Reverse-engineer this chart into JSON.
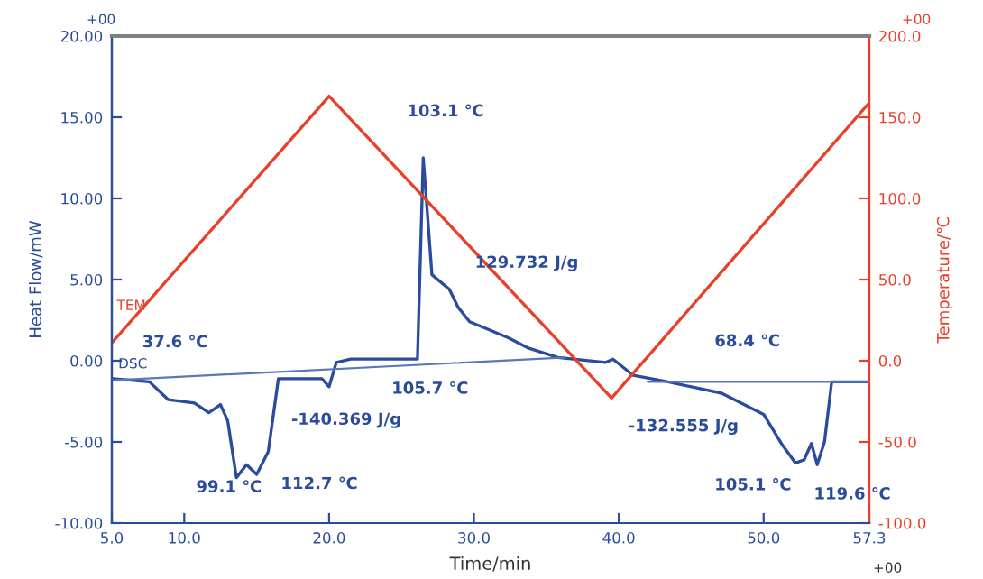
{
  "chart_data": {
    "type": "line",
    "xlabel": "Time/min",
    "ylabel": "Heat Flow/mW",
    "y2label": "Temperature/℃",
    "xlim": [
      5.0,
      57.3
    ],
    "xticks": [
      {
        "value": 5.0,
        "label": "5.0"
      },
      {
        "value": 10.0,
        "label": "10.0"
      },
      {
        "value": 20.0,
        "label": "20.0"
      },
      {
        "value": 30.0,
        "label": "30.0"
      },
      {
        "value": 40.0,
        "label": "40.0"
      },
      {
        "value": 50.0,
        "label": "50.0"
      },
      {
        "value": 57.3,
        "label": "57.3"
      }
    ],
    "ylim": [
      -10,
      20
    ],
    "yticks": [
      {
        "value": -10,
        "label": "-10.00"
      },
      {
        "value": -5,
        "label": "-5.00"
      },
      {
        "value": 0,
        "label": "0.00"
      },
      {
        "value": 5,
        "label": "5.00"
      },
      {
        "value": 10,
        "label": "10.00"
      },
      {
        "value": 15,
        "label": "15.00"
      },
      {
        "value": 20,
        "label": "20.00"
      }
    ],
    "y2lim": [
      -100,
      200
    ],
    "y2ticks": [
      {
        "value": -100,
        "label": "-100.0"
      },
      {
        "value": -50,
        "label": "-50.0"
      },
      {
        "value": 0,
        "label": "0.0"
      },
      {
        "value": 50,
        "label": "50.0"
      },
      {
        "value": 100,
        "label": "100.0"
      },
      {
        "value": 150,
        "label": "150.0"
      },
      {
        "value": 200,
        "label": "200.0"
      }
    ],
    "grid": false,
    "legend": "left",
    "marker": "none",
    "line_style": "solid",
    "series": [
      {
        "name": "TEM",
        "color": "#e8402a",
        "axis": "y2",
        "x": [
          5.0,
          20.0,
          39.5,
          57.3
        ],
        "values": [
          11,
          163,
          -23,
          159
        ]
      },
      {
        "name": "DSC",
        "color": "#2b4b9b",
        "x": [
          5.1,
          7.6,
          8.9,
          10.7,
          11.7,
          12.5,
          13.0,
          13.6,
          14.3,
          15.0,
          15.8,
          16.5,
          19.5,
          20.0,
          20.5,
          21.5,
          26.1,
          26.5,
          27.1,
          28.3,
          28.9,
          29.7,
          30.8,
          32.4,
          33.7,
          35.8,
          39.1,
          39.6,
          41.0,
          43.4,
          47.1,
          50.0,
          51.3,
          52.2,
          52.8,
          53.3,
          53.7,
          54.2,
          54.7,
          56.3,
          57.3
        ],
        "values": [
          -1.1,
          -1.3,
          -2.4,
          -2.6,
          -3.2,
          -2.7,
          -3.7,
          -7.2,
          -6.4,
          -7.0,
          -5.6,
          -1.1,
          -1.1,
          -1.6,
          -0.1,
          0.1,
          0.1,
          12.5,
          5.3,
          4.4,
          3.3,
          2.4,
          2.0,
          1.4,
          0.8,
          0.2,
          -0.1,
          0.1,
          -0.9,
          -1.3,
          -2.0,
          -3.3,
          -5.2,
          -6.3,
          -6.1,
          -5.1,
          -6.4,
          -5.0,
          -1.3,
          -1.3,
          -1.3
        ]
      },
      {
        "color": "#5a78b8",
        "x": [
          5.0,
          36.3
        ],
        "values": [
          -1.2,
          0.2
        ]
      },
      {
        "color": "#5a78b8",
        "x": [
          42.0,
          57.3
        ],
        "values": [
          -1.3,
          -1.3
        ]
      }
    ],
    "annotations": [
      "+00",
      "+00",
      "+00",
      "103.1 ℃",
      "129.732 J/g",
      "37.6 ℃",
      "-140.369 J/g",
      {
        "text": "105.7 ℃",
        "x": 26.1,
        "y": 0.1
      },
      {
        "text": "99.1 ℃",
        "x": 13.6,
        "y": -7.2
      },
      {
        "text": "112.7 ℃",
        "x": 15.0,
        "y": -7.0
      },
      {
        "text": "68.4 ℃",
        "x": 48.7,
        "y": -1.3
      },
      {
        "text": "-132.555 J/g",
        "x": 50.0,
        "y": -3.3
      },
      {
        "text": "105.1 ℃",
        "x": 52.2,
        "y": -6.3
      },
      {
        "text": "119.6 ℃",
        "x": 53.7,
        "y": -6.4
      }
    ]
  }
}
